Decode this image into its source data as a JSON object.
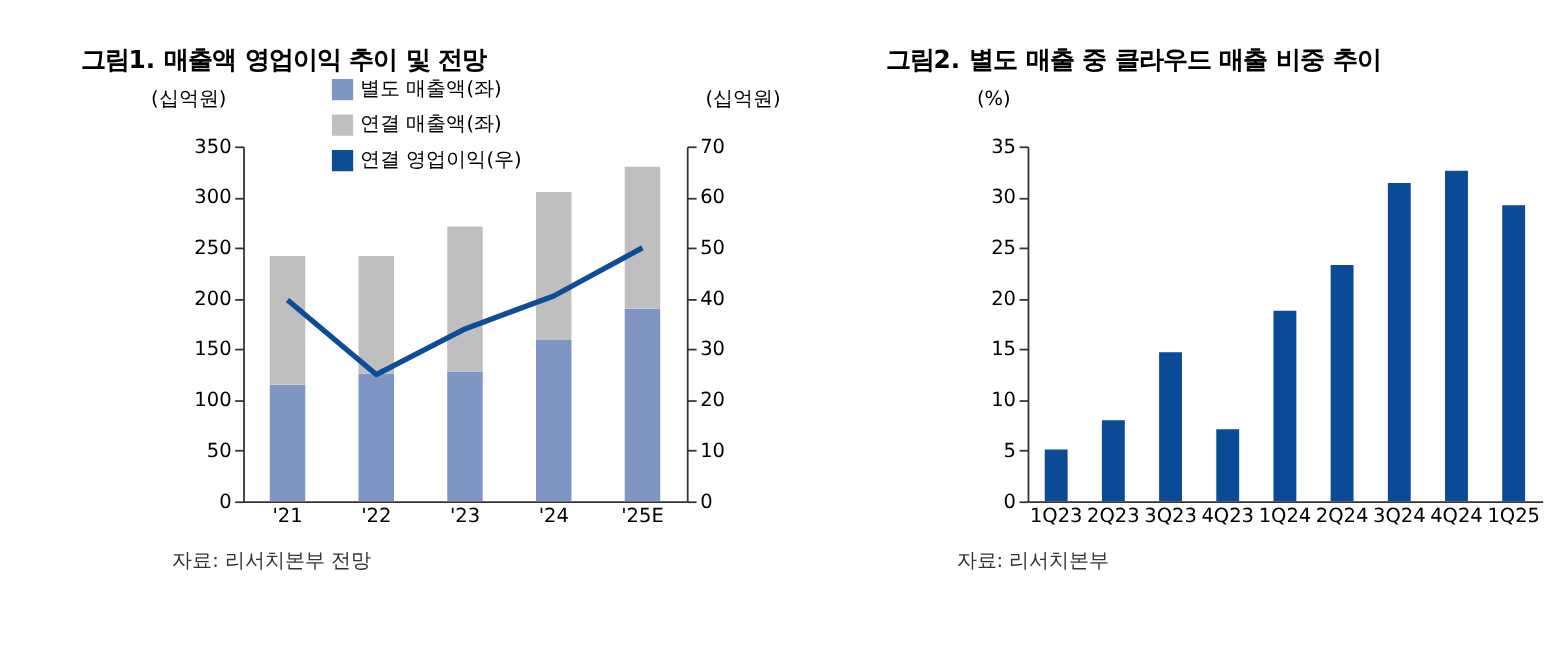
{
  "chart_data": [
    {
      "type": "bar",
      "title": "그림1. 매출액 영업이익 추이 및 전망",
      "categories": [
        "'21",
        "'22",
        "'23",
        "'24",
        "'25E"
      ],
      "stacked": true,
      "legend": "top",
      "ylabel": "(십억원)",
      "y2label": "(십억원)",
      "ylim": [
        0,
        350
      ],
      "yticks": [
        0,
        50,
        100,
        150,
        200,
        250,
        300,
        350
      ],
      "y2lim": [
        0,
        70
      ],
      "y2ticks": [
        0,
        10,
        20,
        30,
        40,
        50,
        60,
        70
      ],
      "annotations": [
        "자료: 리서치본부 전망"
      ],
      "series": [
        {
          "name": "별도 매출액(좌)",
          "color": "#7f96c4",
          "values": [
            115,
            126,
            128,
            159,
            190
          ]
        },
        {
          "name": "연결 매출액(좌)",
          "color": "#bfbfbf",
          "values": [
            127,
            116,
            143,
            146,
            140
          ]
        },
        {
          "name": "연결 영업이익(우)",
          "color": "#0b4d96",
          "type": "line",
          "axis": "y2",
          "values": [
            39.7,
            25,
            34,
            40.5,
            50
          ]
        }
      ]
    },
    {
      "type": "bar",
      "title": "그림2. 별도 매출 중 클라우드 매출 비중 추이",
      "categories": [
        "1Q23",
        "2Q23",
        "3Q23",
        "4Q23",
        "1Q24",
        "2Q24",
        "3Q24",
        "4Q24",
        "1Q25"
      ],
      "ylabel": "(%)",
      "ylim": [
        0,
        35
      ],
      "yticks": [
        0,
        5,
        10,
        15,
        20,
        25,
        30,
        35
      ],
      "annotations": [
        "자료: 리서치본부"
      ],
      "series": [
        {
          "color": "#0b4a96",
          "values": [
            5.1,
            8,
            14.7,
            7.1,
            18.8,
            23.3,
            31.4,
            32.6,
            29.2
          ]
        }
      ]
    }
  ]
}
